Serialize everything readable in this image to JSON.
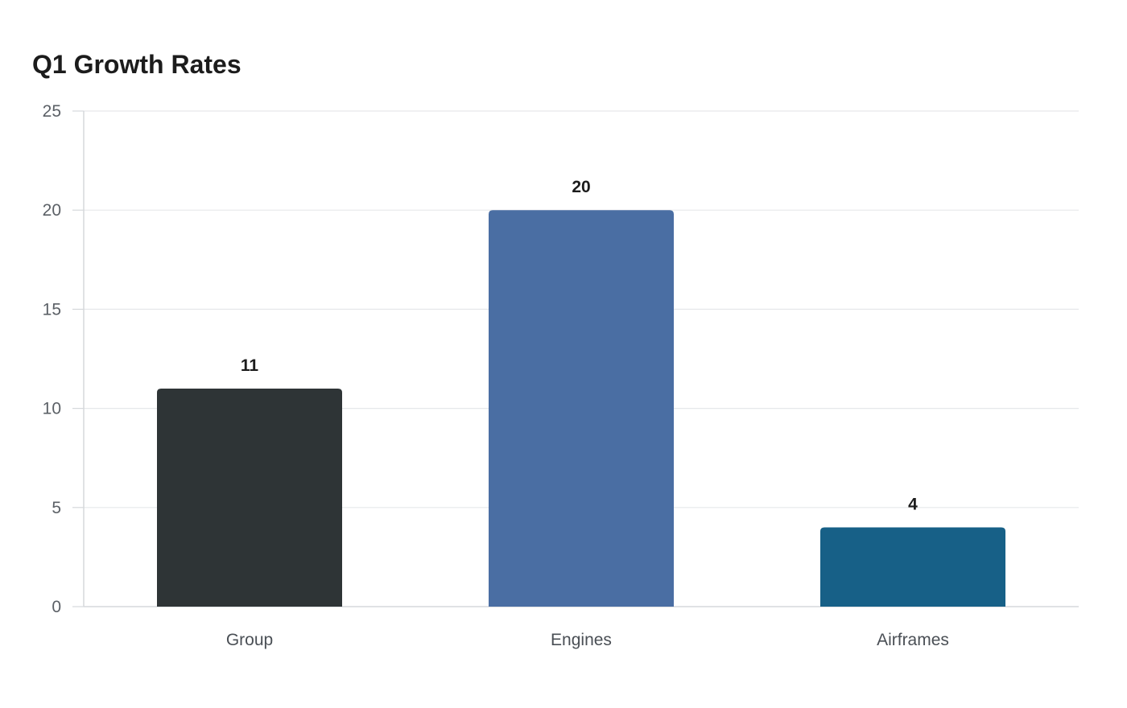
{
  "chart_data": {
    "type": "bar",
    "title": "Q1 Growth Rates",
    "xlabel": "",
    "ylabel": "",
    "categories": [
      "Group",
      "Engines",
      "Airframes"
    ],
    "values": [
      11,
      20,
      4
    ],
    "ylim": [
      0,
      25
    ],
    "yticks": [
      0,
      5,
      10,
      15,
      20,
      25
    ],
    "colors": [
      "#2e3436",
      "#4a6ea3",
      "#176087"
    ],
    "grid": true,
    "legend": "none"
  }
}
